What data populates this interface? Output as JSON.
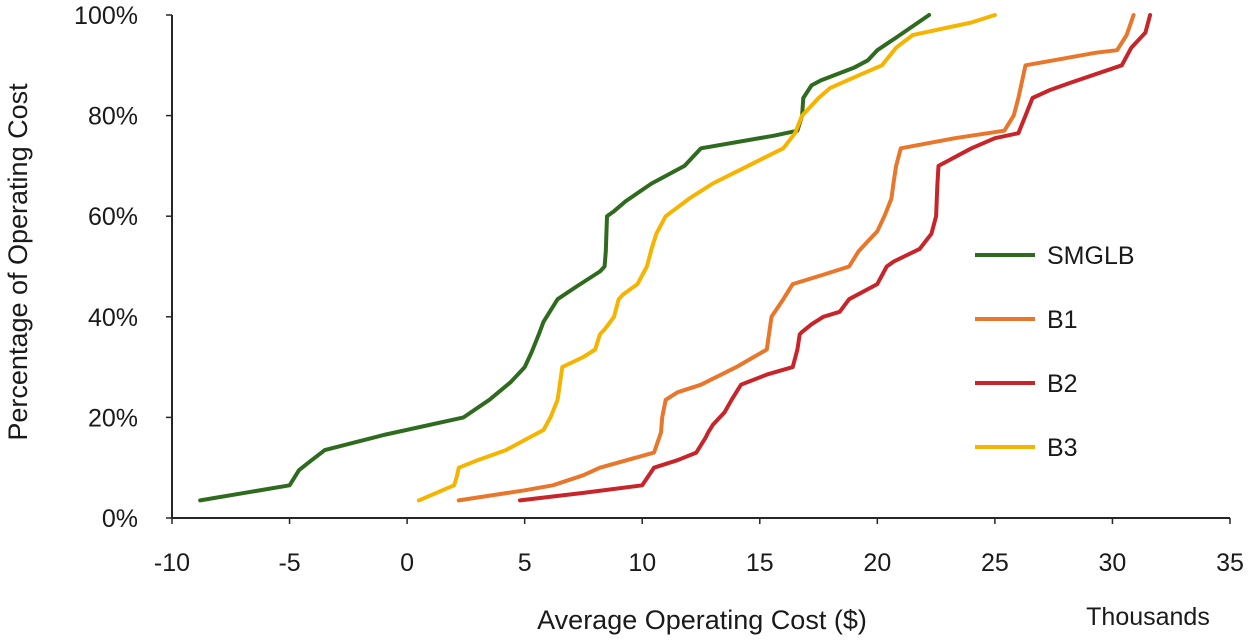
{
  "chart_data": {
    "type": "line",
    "title": "",
    "xlabel": "Average Operating Cost ($)",
    "ylabel": "Percentage of Operating Cost",
    "x_units_label": "Thousands",
    "xlim": [
      -10,
      35
    ],
    "ylim": [
      0,
      100
    ],
    "x_ticks": [
      -10,
      -5,
      0,
      5,
      10,
      15,
      20,
      25,
      30,
      35
    ],
    "x_tick_labels": [
      "-10",
      "-5",
      "0",
      "5",
      "10",
      "15",
      "20",
      "25",
      "30",
      "35"
    ],
    "y_ticks": [
      0,
      20,
      40,
      60,
      80,
      100
    ],
    "y_tick_labels": [
      "0%",
      "20%",
      "40%",
      "60%",
      "80%",
      "100%"
    ],
    "grid": false,
    "legend": "right",
    "series": [
      {
        "name": "SMGLB",
        "color": "#2e6b1e",
        "x": [
          -8.8,
          -5.0,
          -4.6,
          -4.2,
          -3.5,
          -1.0,
          2.4,
          3.5,
          4.4,
          5.0,
          5.3,
          5.6,
          5.8,
          6.4,
          7.2,
          8.2,
          8.4,
          8.45,
          8.5,
          8.8,
          9.3,
          10.4,
          11.8,
          12.5,
          15.6,
          16.6,
          16.8,
          16.85,
          17.2,
          17.6,
          19.0,
          19.6,
          20.0,
          20.8,
          22.2
        ],
        "y": [
          3.5,
          6.5,
          9.5,
          11,
          13.5,
          16.5,
          20,
          23.5,
          27,
          30,
          33,
          36.5,
          39,
          43.5,
          46,
          49,
          50,
          53,
          60,
          61,
          63,
          66.5,
          70,
          73.5,
          76,
          77,
          80,
          83.5,
          86,
          87,
          89.5,
          91,
          93,
          95.5,
          100
        ]
      },
      {
        "name": "B1",
        "color": "#e8762b",
        "x": [
          2.2,
          5.0,
          6.2,
          7.5,
          8.2,
          10.5,
          10.8,
          10.85,
          11.0,
          11.5,
          12.5,
          14.0,
          15.3,
          15.5,
          16.0,
          16.4,
          17.8,
          18.8,
          19.2,
          19.6,
          20.0,
          20.3,
          20.6,
          20.7,
          20.8,
          21.0,
          23.3,
          25.4,
          25.8,
          26.0,
          26.3,
          27.5,
          29.3,
          30.2,
          30.6,
          30.9
        ],
        "y": [
          3.5,
          5.5,
          6.5,
          8.5,
          10,
          13,
          17,
          20,
          23.5,
          25,
          26.5,
          30,
          33.5,
          40,
          43.5,
          46.5,
          48.5,
          50,
          53,
          55,
          57,
          60,
          63.5,
          67,
          70,
          73.5,
          75.5,
          77,
          80,
          83.5,
          90,
          91,
          92.5,
          93,
          96,
          100
        ]
      },
      {
        "name": "B2",
        "color": "#c8252a",
        "x": [
          4.8,
          7.5,
          10.0,
          10.5,
          11.5,
          12.3,
          12.7,
          12.8,
          13.0,
          13.5,
          13.8,
          14.2,
          15.3,
          16.4,
          16.6,
          16.7,
          16.8,
          17.2,
          17.7,
          18.4,
          18.8,
          19.2,
          19.6,
          20.0,
          20.4,
          20.7,
          21.8,
          22.3,
          22.5,
          22.55,
          22.6,
          23.0,
          24.0,
          25.0,
          26.0,
          26.3,
          26.6,
          27.3,
          28.2,
          30.4,
          30.8,
          31.4,
          31.6
        ],
        "y": [
          3.5,
          5,
          6.5,
          10,
          11.5,
          13,
          16,
          17,
          18.5,
          21,
          23.5,
          26.5,
          28.5,
          30,
          33.5,
          36.5,
          37,
          38.5,
          40,
          41,
          43.5,
          44.5,
          45.5,
          46.5,
          50,
          51,
          53.5,
          56.5,
          60,
          66,
          70,
          71,
          73.5,
          75.5,
          76.5,
          80,
          83.5,
          85,
          86.5,
          90,
          93.5,
          96.5,
          100
        ]
      },
      {
        "name": "B3",
        "color": "#f5b400",
        "x": [
          0.5,
          1.5,
          2.0,
          2.1,
          2.2,
          3.0,
          4.2,
          5.2,
          5.8,
          6.1,
          6.4,
          6.6,
          7.5,
          8.0,
          8.2,
          8.4,
          8.8,
          9.0,
          9.2,
          9.8,
          10.2,
          10.4,
          10.6,
          11.0,
          12.0,
          13.0,
          14.5,
          16.0,
          16.5,
          16.8,
          17.0,
          17.5,
          18.0,
          19.2,
          20.2,
          20.8,
          21.5,
          24.0,
          25.0
        ],
        "y": [
          3.5,
          5.5,
          6.5,
          8,
          10,
          11.5,
          13.5,
          16,
          17.5,
          20,
          23.5,
          30,
          32,
          33.5,
          36.5,
          37.5,
          40,
          43.5,
          44.5,
          46.5,
          50,
          53.5,
          56.5,
          60,
          63.5,
          66.5,
          70,
          73.5,
          76.5,
          80,
          81,
          83.5,
          85.5,
          88,
          90,
          93.5,
          96,
          98.5,
          100
        ]
      }
    ]
  }
}
